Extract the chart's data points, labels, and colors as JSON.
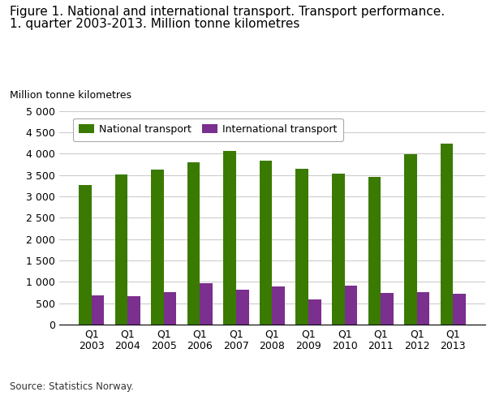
{
  "title_line1": "Figure 1. National and international transport. Transport performance.",
  "title_line2": "1. quarter 2003-2013. Million tonne kilometres",
  "ylabel": "Million tonne kilometres",
  "source": "Source: Statistics Norway.",
  "categories": [
    "Q1\n2003",
    "Q1\n2004",
    "Q1\n2005",
    "Q1\n2006",
    "Q1\n2007",
    "Q1\n2008",
    "Q1\n2009",
    "Q1\n2010",
    "Q1\n2011",
    "Q1\n2012",
    "Q1\n2013"
  ],
  "national": [
    3270,
    3510,
    3630,
    3800,
    4060,
    3840,
    3640,
    3530,
    3460,
    3980,
    4240
  ],
  "international": [
    690,
    670,
    755,
    975,
    825,
    900,
    590,
    920,
    745,
    760,
    730
  ],
  "national_color": "#3a7a00",
  "international_color": "#7b2f8e",
  "ylim": [
    0,
    5000
  ],
  "yticks": [
    0,
    500,
    1000,
    1500,
    2000,
    2500,
    3000,
    3500,
    4000,
    4500,
    5000
  ],
  "ytick_labels": [
    "0",
    "500",
    "1 000",
    "1 500",
    "2 000",
    "2 500",
    "3 000",
    "3 500",
    "4 000",
    "4 500",
    "5 000"
  ],
  "legend_national": "National transport",
  "legend_international": "International transport",
  "background_color": "#ffffff",
  "grid_color": "#cccccc",
  "title_fontsize": 11,
  "axis_label_fontsize": 9,
  "tick_fontsize": 9,
  "bar_width": 0.35
}
